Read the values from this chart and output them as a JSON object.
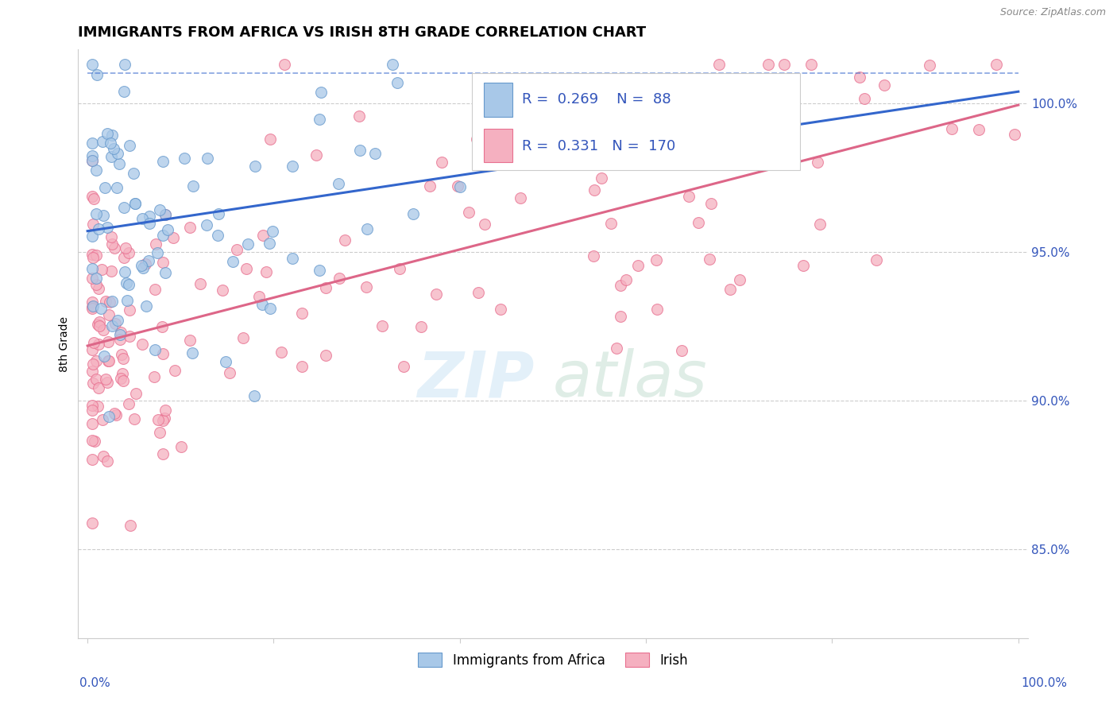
{
  "title": "IMMIGRANTS FROM AFRICA VS IRISH 8TH GRADE CORRELATION CHART",
  "source": "Source: ZipAtlas.com",
  "ylabel": "8th Grade",
  "ytick_values": [
    85.0,
    90.0,
    95.0,
    100.0
  ],
  "ytick_labels": [
    "85.0%",
    "90.0%",
    "95.0%",
    "100.0%"
  ],
  "ymin": 82.0,
  "ymax": 101.8,
  "xmin": -0.01,
  "xmax": 1.01,
  "africa_color": "#a8c8e8",
  "africa_edge": "#6699cc",
  "irish_color": "#f5b0c0",
  "irish_edge": "#e87090",
  "africa_line_color": "#3366cc",
  "irish_line_color": "#dd6688",
  "africa_R": 0.269,
  "africa_N": 88,
  "irish_R": 0.331,
  "irish_N": 170,
  "legend_label_africa": "Immigrants from Africa",
  "legend_label_irish": "Irish",
  "grid_color": "#cccccc",
  "axis_color": "#cccccc",
  "label_color": "#3355bb",
  "title_fontsize": 13,
  "tick_fontsize": 11,
  "ylabel_fontsize": 10
}
